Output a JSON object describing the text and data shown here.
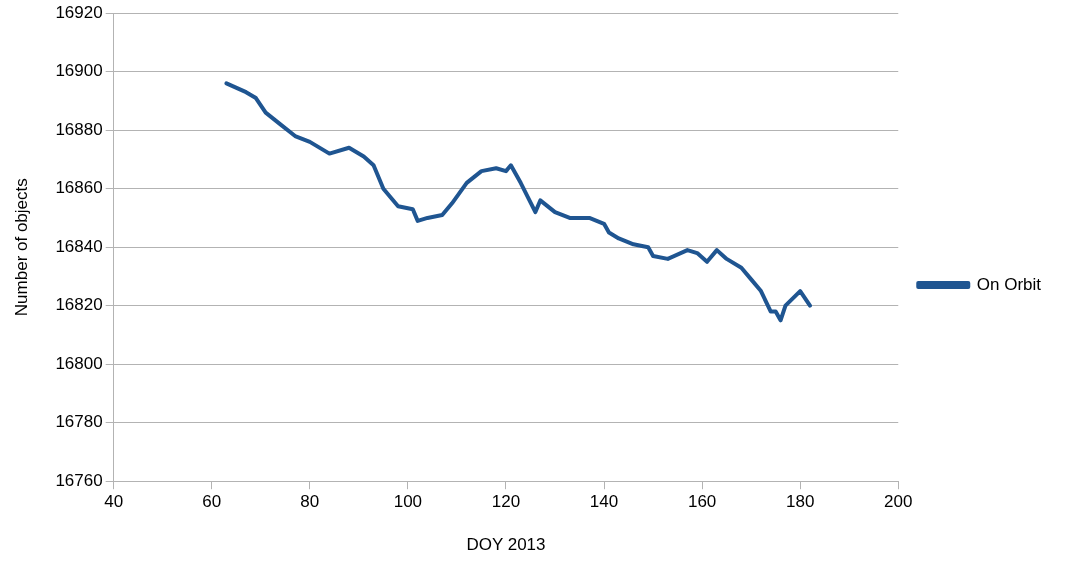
{
  "chart_data": {
    "type": "line",
    "xlabel": "DOY 2013",
    "ylabel": "Number of objects",
    "xlim": [
      40,
      200
    ],
    "xticks": [
      40,
      60,
      80,
      100,
      120,
      140,
      160,
      180,
      200
    ],
    "ylim": [
      16760,
      16920
    ],
    "yticks": [
      16760,
      16780,
      16800,
      16820,
      16840,
      16860,
      16880,
      16900,
      16920
    ],
    "grid": "y",
    "legend": "right",
    "marker": "none",
    "line_style": "solid",
    "series": [
      {
        "name": "On Orbit",
        "color": "#1f5591",
        "x": [
          63,
          67,
          69,
          71,
          74,
          77,
          80,
          84,
          88,
          91,
          93,
          95,
          98,
          101,
          102,
          104,
          107,
          109,
          112,
          115,
          118,
          120,
          121,
          123,
          126,
          127,
          130,
          133,
          137,
          140,
          141,
          143,
          146,
          149,
          150,
          153,
          157,
          159,
          161,
          163,
          165,
          168,
          170,
          172,
          174,
          175,
          176,
          177,
          180,
          182
        ],
        "values": [
          16896,
          16893,
          16891,
          16886,
          16882,
          16878,
          16876,
          16872,
          16874,
          16871,
          16868,
          16860,
          16854,
          16853,
          16849,
          16850,
          16851,
          16855,
          16862,
          16866,
          16867,
          16866,
          16868,
          16862,
          16852,
          16856,
          16852,
          16850,
          16850,
          16848,
          16845,
          16843,
          16841,
          16840,
          16837,
          16836,
          16839,
          16838,
          16835,
          16839,
          16836,
          16833,
          16829,
          16825,
          16818,
          16818,
          16815,
          16820,
          16825,
          16820
        ]
      }
    ]
  }
}
